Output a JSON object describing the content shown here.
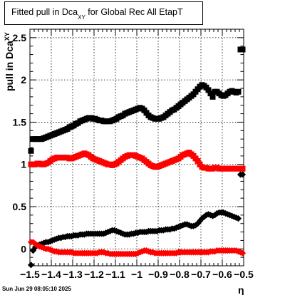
{
  "title_main": "Fitted pull in Dca",
  "title_sub": "XY",
  "title_rest": " for Global Rec All EtapT",
  "ylabel_main": "pull in Dca",
  "ylabel_sub": "XY",
  "xlabel": "η",
  "timestamp": "Sun Jun 29 08:05:10 2025",
  "colors": {
    "black": "#000000",
    "red": "#ff0000"
  },
  "chart_data": {
    "type": "scatter",
    "title": "Fitted pull in DcaXY for Global Rec All EtapT",
    "xlabel": "η",
    "ylabel": "pull in DcaXY",
    "xlim": [
      -1.5,
      -0.5
    ],
    "ylim": [
      -0.2,
      2.6
    ],
    "grid": true,
    "x_ticks": [
      -1.5,
      -1.4,
      -1.3,
      -1.2,
      -1.1,
      -1,
      -0.9,
      -0.8,
      -0.7,
      -0.6,
      -0.5
    ],
    "x_tick_labels": [
      "−1.5",
      "−1.4",
      "−1.3",
      "−1.2",
      "−1.1",
      "−1",
      "−0.9",
      "−0.8",
      "−0.7",
      "−0.6",
      "−0.5"
    ],
    "y_ticks": [
      0,
      0.5,
      1,
      1.5,
      2,
      2.5
    ],
    "y_tick_labels": [
      "0",
      "0.5",
      "1",
      "1.5",
      "2",
      "2.5"
    ],
    "x": [
      -1.495,
      -1.485,
      -1.475,
      -1.465,
      -1.455,
      -1.445,
      -1.435,
      -1.425,
      -1.415,
      -1.405,
      -1.395,
      -1.385,
      -1.375,
      -1.365,
      -1.355,
      -1.345,
      -1.335,
      -1.325,
      -1.315,
      -1.305,
      -1.295,
      -1.285,
      -1.275,
      -1.265,
      -1.255,
      -1.245,
      -1.235,
      -1.225,
      -1.215,
      -1.205,
      -1.195,
      -1.185,
      -1.175,
      -1.165,
      -1.155,
      -1.145,
      -1.135,
      -1.125,
      -1.115,
      -1.105,
      -1.095,
      -1.085,
      -1.075,
      -1.065,
      -1.055,
      -1.045,
      -1.035,
      -1.025,
      -1.015,
      -1.005,
      -0.995,
      -0.985,
      -0.975,
      -0.965,
      -0.955,
      -0.945,
      -0.935,
      -0.925,
      -0.915,
      -0.905,
      -0.895,
      -0.885,
      -0.875,
      -0.865,
      -0.855,
      -0.845,
      -0.835,
      -0.825,
      -0.815,
      -0.805,
      -0.795,
      -0.785,
      -0.775,
      -0.765,
      -0.755,
      -0.745,
      -0.735,
      -0.725,
      -0.715,
      -0.705,
      -0.695,
      -0.685,
      -0.675,
      -0.665,
      -0.655,
      -0.645,
      -0.635,
      -0.625,
      -0.615,
      -0.605,
      -0.595,
      -0.585,
      -0.575,
      -0.565,
      -0.555,
      -0.545,
      -0.535,
      -0.525,
      -0.515,
      -0.505
    ],
    "series": [
      {
        "color": "black",
        "marker": "square",
        "values": [
          1.16,
          1.3,
          1.3,
          1.3,
          1.3,
          1.3,
          1.31,
          1.32,
          1.33,
          1.34,
          1.35,
          1.36,
          1.37,
          1.38,
          1.39,
          1.4,
          1.41,
          1.42,
          1.44,
          1.45,
          1.46,
          1.48,
          1.49,
          1.51,
          1.52,
          1.53,
          1.54,
          1.55,
          1.55,
          1.54,
          1.54,
          1.53,
          1.52,
          1.52,
          1.51,
          1.51,
          1.51,
          1.51,
          1.52,
          1.53,
          1.54,
          1.56,
          1.57,
          1.58,
          1.6,
          1.61,
          1.62,
          1.63,
          1.64,
          1.65,
          1.66,
          1.67,
          1.66,
          1.64,
          1.61,
          1.58,
          1.56,
          1.55,
          1.54,
          1.54,
          1.54,
          1.55,
          1.56,
          1.58,
          1.6,
          1.62,
          1.64,
          1.65,
          1.67,
          1.69,
          1.71,
          1.73,
          1.75,
          1.77,
          1.79,
          1.81,
          1.83,
          1.86,
          1.89,
          1.92,
          1.94,
          1.93,
          1.91,
          1.88,
          1.84,
          1.8,
          1.86,
          1.86,
          1.84,
          1.82,
          1.81,
          1.82,
          1.84,
          1.86,
          1.87,
          1.86,
          1.85,
          1.86,
          2.36,
          2.36
        ]
      },
      {
        "color": "red",
        "marker": "square",
        "values": [
          1.0,
          1.0,
          1.0,
          1.01,
          1.01,
          1.0,
          1.0,
          1.01,
          1.02,
          1.04,
          1.06,
          1.07,
          1.08,
          1.08,
          1.08,
          1.08,
          1.08,
          1.08,
          1.07,
          1.07,
          1.08,
          1.09,
          1.1,
          1.11,
          1.12,
          1.13,
          1.12,
          1.11,
          1.09,
          1.07,
          1.06,
          1.05,
          1.04,
          1.03,
          1.02,
          1.01,
          1.0,
          1.0,
          0.99,
          1.0,
          1.01,
          1.03,
          1.05,
          1.07,
          1.09,
          1.1,
          1.11,
          1.11,
          1.11,
          1.1,
          1.09,
          1.08,
          1.07,
          1.05,
          1.03,
          1.01,
          0.99,
          0.98,
          0.97,
          0.97,
          0.98,
          0.99,
          1.0,
          1.01,
          1.02,
          1.03,
          1.04,
          1.05,
          1.06,
          1.07,
          1.09,
          1.11,
          1.12,
          1.13,
          1.14,
          1.12,
          1.1,
          1.07,
          1.04,
          1.0,
          0.97,
          0.96,
          0.96,
          0.95,
          0.95,
          0.95,
          0.96,
          0.96,
          0.95,
          0.95,
          0.95,
          0.95,
          0.95,
          0.95,
          0.95,
          0.95,
          0.95,
          0.95,
          0.95,
          0.95
        ]
      },
      {
        "color": "black",
        "marker": "circle",
        "values": [
          -0.19,
          -0.02,
          0.02,
          0.04,
          0.05,
          0.06,
          0.07,
          0.08,
          0.08,
          0.09,
          0.1,
          0.11,
          0.12,
          0.13,
          0.13,
          0.14,
          0.14,
          0.15,
          0.15,
          0.15,
          0.16,
          0.16,
          0.16,
          0.17,
          0.17,
          0.17,
          0.18,
          0.18,
          0.18,
          0.18,
          0.18,
          0.18,
          0.18,
          0.18,
          0.18,
          0.19,
          0.2,
          0.21,
          0.22,
          0.22,
          0.21,
          0.2,
          0.19,
          0.18,
          0.17,
          0.17,
          0.17,
          0.18,
          0.18,
          0.19,
          0.19,
          0.2,
          0.2,
          0.2,
          0.2,
          0.21,
          0.21,
          0.21,
          0.21,
          0.21,
          0.22,
          0.22,
          0.22,
          0.23,
          0.23,
          0.23,
          0.24,
          0.24,
          0.25,
          0.26,
          0.27,
          0.28,
          0.29,
          0.29,
          0.28,
          0.27,
          0.27,
          0.28,
          0.3,
          0.33,
          0.36,
          0.38,
          0.4,
          0.41,
          0.4,
          0.39,
          0.4,
          0.42,
          0.43,
          0.43,
          0.43,
          0.42,
          0.41,
          0.4,
          0.39,
          0.38,
          0.37,
          0.36,
          0.88,
          0.88
        ]
      },
      {
        "color": "red",
        "marker": "circle",
        "values": [
          0.08,
          0.08,
          0.06,
          0.04,
          0.03,
          0.02,
          0.01,
          0.0,
          0.0,
          -0.01,
          -0.02,
          -0.03,
          -0.03,
          -0.04,
          -0.04,
          -0.04,
          -0.04,
          -0.04,
          -0.04,
          -0.04,
          -0.05,
          -0.05,
          -0.05,
          -0.05,
          -0.05,
          -0.05,
          -0.05,
          -0.05,
          -0.05,
          -0.05,
          -0.05,
          -0.05,
          -0.04,
          -0.04,
          -0.04,
          -0.05,
          -0.05,
          -0.06,
          -0.06,
          -0.06,
          -0.06,
          -0.06,
          -0.06,
          -0.06,
          -0.06,
          -0.06,
          -0.06,
          -0.06,
          -0.06,
          -0.06,
          -0.05,
          -0.04,
          -0.03,
          -0.02,
          -0.02,
          -0.03,
          -0.04,
          -0.04,
          -0.05,
          -0.05,
          -0.05,
          -0.05,
          -0.05,
          -0.05,
          -0.05,
          -0.05,
          -0.05,
          -0.05,
          -0.05,
          -0.04,
          -0.04,
          -0.04,
          -0.04,
          -0.04,
          -0.04,
          -0.04,
          -0.04,
          -0.04,
          -0.04,
          -0.04,
          -0.04,
          -0.04,
          -0.04,
          -0.04,
          -0.03,
          -0.03,
          -0.03,
          -0.02,
          -0.02,
          -0.02,
          -0.02,
          -0.02,
          -0.02,
          -0.02,
          -0.02,
          -0.02,
          -0.02,
          -0.03,
          -0.04,
          -0.05
        ]
      }
    ]
  }
}
